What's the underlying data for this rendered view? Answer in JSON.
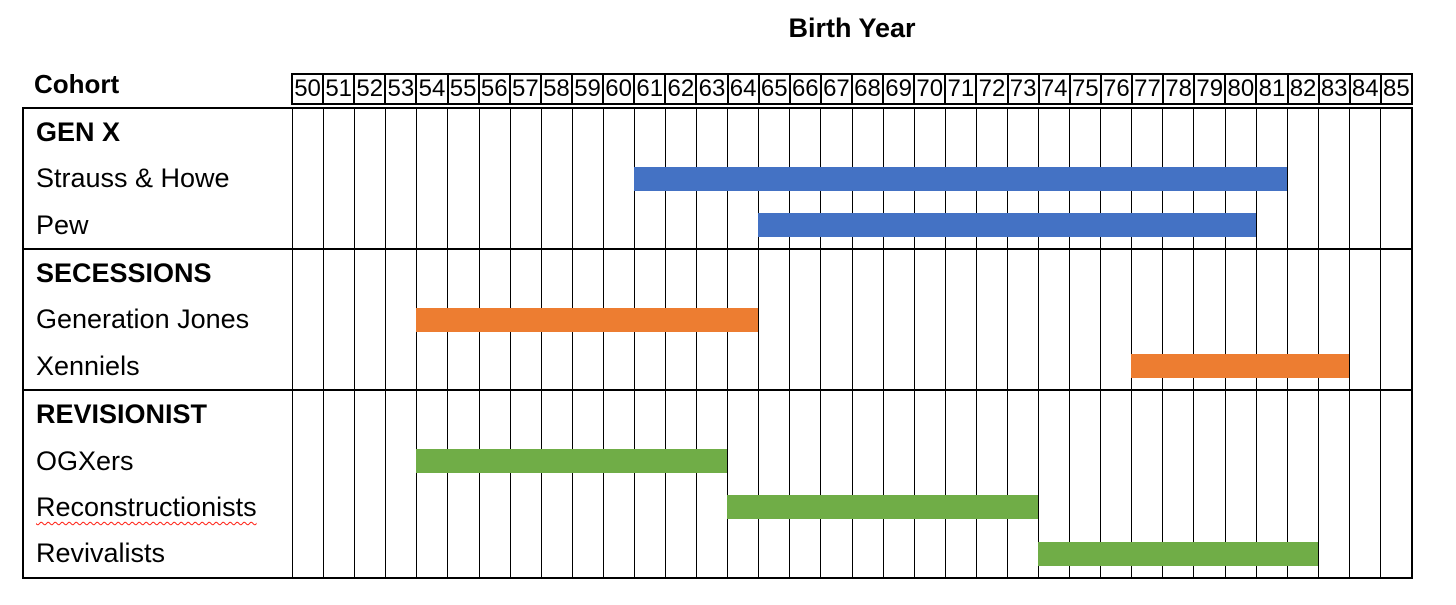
{
  "chart_data": {
    "type": "gantt",
    "title": "Birth Year",
    "row_header": "Cohort",
    "x_axis": {
      "label": "Birth Year",
      "start_year": 1950,
      "end_year": 1985,
      "tick_labels": [
        "50",
        "51",
        "52",
        "53",
        "54",
        "55",
        "56",
        "57",
        "58",
        "59",
        "60",
        "61",
        "62",
        "63",
        "64",
        "65",
        "66",
        "67",
        "68",
        "69",
        "70",
        "71",
        "72",
        "73",
        "74",
        "75",
        "76",
        "77",
        "78",
        "79",
        "80",
        "81",
        "82",
        "83",
        "84",
        "85"
      ],
      "grid": true
    },
    "colors": {
      "gen_x_blue": "#4472C4",
      "secessions_orange": "#ED7D31",
      "revisionist_green": "#70AD47",
      "border_black": "#000000",
      "spellcheck_red": "#ff1a0e"
    },
    "sections": [
      {
        "label": "GEN X",
        "rows": [
          {
            "label": "Strauss & Howe",
            "start": 1961,
            "end": 1981,
            "color": "#4472C4"
          },
          {
            "label": "Pew",
            "start": 1965,
            "end": 1980,
            "color": "#4472C4"
          }
        ]
      },
      {
        "label": "SECESSIONS",
        "rows": [
          {
            "label": "Generation Jones",
            "start": 1954,
            "end": 1964,
            "color": "#ED7D31"
          },
          {
            "label": "Xenniels",
            "start": 1977,
            "end": 1983,
            "color": "#ED7D31"
          }
        ]
      },
      {
        "label": "REVISIONIST",
        "rows": [
          {
            "label": "OGXers",
            "start": 1954,
            "end": 1963,
            "color": "#70AD47"
          },
          {
            "label": "Reconstructionists",
            "start": 1964,
            "end": 1973,
            "color": "#70AD47",
            "spellcheck_underline": true
          },
          {
            "label": "Revivalists",
            "start": 1974,
            "end": 1982,
            "color": "#70AD47"
          }
        ]
      }
    ]
  }
}
